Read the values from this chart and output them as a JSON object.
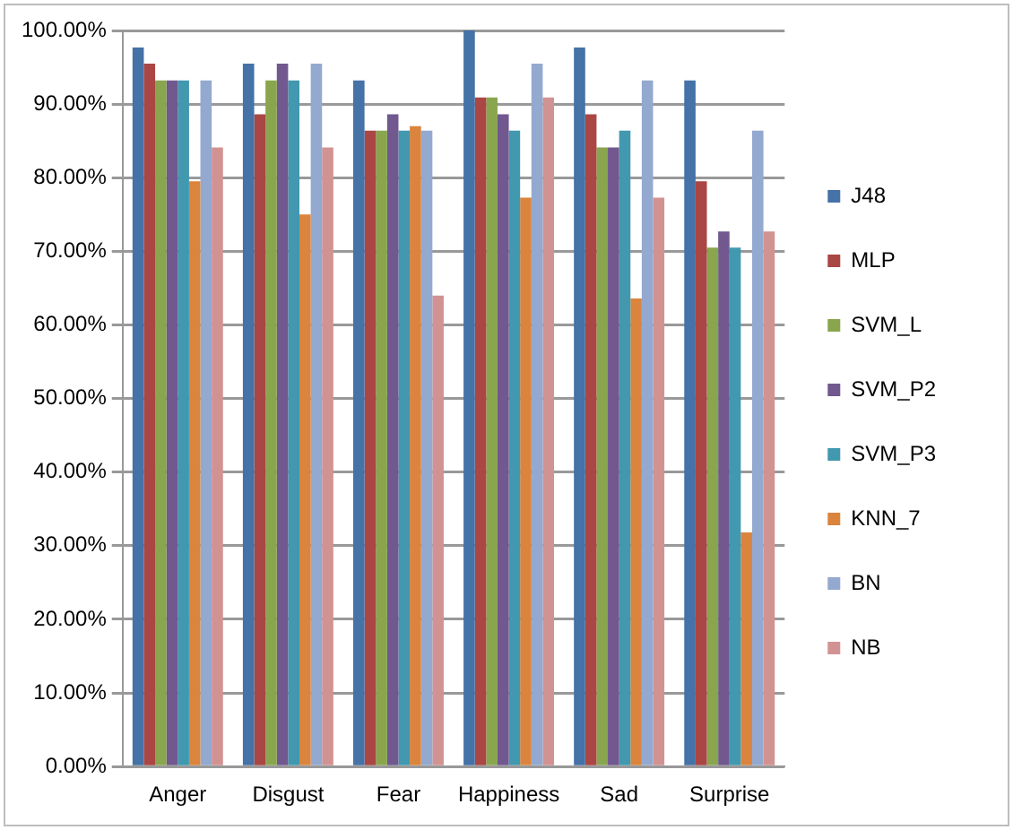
{
  "chart_data": {
    "type": "bar",
    "categories": [
      "Anger",
      "Disgust",
      "Fear",
      "Happiness",
      "Sad",
      "Surprise"
    ],
    "series": [
      {
        "name": "J48",
        "color": "#4572a7",
        "values": [
          97.7,
          95.5,
          93.2,
          100,
          97.7,
          93.2
        ]
      },
      {
        "name": "MLP",
        "color": "#aa4643",
        "values": [
          95.5,
          88.6,
          86.4,
          90.9,
          88.6,
          79.5
        ]
      },
      {
        "name": "SVM_L",
        "color": "#89a54e",
        "values": [
          93.2,
          93.2,
          86.4,
          90.9,
          84.1,
          70.5
        ]
      },
      {
        "name": "SVM_P2",
        "color": "#71588f",
        "values": [
          93.2,
          95.5,
          88.6,
          88.6,
          84.1,
          72.7
        ]
      },
      {
        "name": "SVM_P3",
        "color": "#4198af",
        "values": [
          93.2,
          93.2,
          86.4,
          86.4,
          86.4,
          70.5
        ]
      },
      {
        "name": "KNN_7",
        "color": "#db843d",
        "values": [
          79.5,
          75,
          87,
          77.3,
          63.6,
          31.8
        ]
      },
      {
        "name": "BN",
        "color": "#93a9cf",
        "values": [
          93.2,
          95.5,
          86.4,
          95.5,
          93.2,
          86.4
        ]
      },
      {
        "name": "NB",
        "color": "#d19392",
        "values": [
          84.1,
          84.1,
          64,
          90.9,
          77.3,
          72.7
        ]
      }
    ],
    "ylim": [
      0,
      100
    ],
    "yticks": [
      {
        "value": 0,
        "label": "0.00%"
      },
      {
        "value": 10,
        "label": "10.00%"
      },
      {
        "value": 20,
        "label": "20.00%"
      },
      {
        "value": 30,
        "label": "30.00%"
      },
      {
        "value": 40,
        "label": "40.00%"
      },
      {
        "value": 50,
        "label": "50.00%"
      },
      {
        "value": 60,
        "label": "60.00%"
      },
      {
        "value": 70,
        "label": "70.00%"
      },
      {
        "value": 80,
        "label": "80.00%"
      },
      {
        "value": 90,
        "label": "90.00%"
      },
      {
        "value": 100,
        "label": "100.00%"
      }
    ],
    "grid": "y",
    "legend": "right"
  }
}
